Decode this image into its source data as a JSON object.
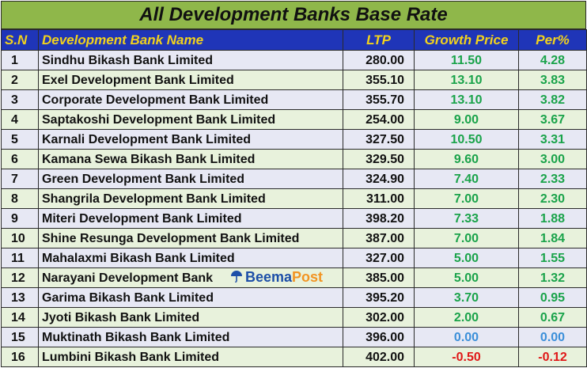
{
  "title": "All Development Banks Base Rate",
  "columns": {
    "sn": "S.N",
    "name": "Development Bank Name",
    "ltp": "LTP",
    "growth": "Growth Price",
    "per": "Per%"
  },
  "rows": [
    {
      "sn": "1",
      "name": "Sindhu Bikash Bank Limited",
      "ltp": "280.00",
      "growth": "11.50",
      "per": "4.28",
      "trend": "pos"
    },
    {
      "sn": "2",
      "name": "Exel Development Bank Limited",
      "ltp": "355.10",
      "growth": "13.10",
      "per": "3.83",
      "trend": "pos"
    },
    {
      "sn": "3",
      "name": "Corporate Development Bank Limited",
      "ltp": "355.70",
      "growth": "13.10",
      "per": "3.82",
      "trend": "pos"
    },
    {
      "sn": "4",
      "name": "Saptakoshi Development Bank Limited",
      "ltp": "254.00",
      "growth": "9.00",
      "per": "3.67",
      "trend": "pos"
    },
    {
      "sn": "5",
      "name": "Karnali Development Bank Limited",
      "ltp": "327.50",
      "growth": "10.50",
      "per": "3.31",
      "trend": "pos"
    },
    {
      "sn": "6",
      "name": "Kamana Sewa Bikash Bank Limited",
      "ltp": "329.50",
      "growth": "9.60",
      "per": "3.00",
      "trend": "pos"
    },
    {
      "sn": "7",
      "name": "Green Development Bank Limited",
      "ltp": "324.90",
      "growth": "7.40",
      "per": "2.33",
      "trend": "pos"
    },
    {
      "sn": "8",
      "name": "Shangrila Development Bank Limited",
      "ltp": "311.00",
      "growth": "7.00",
      "per": "2.30",
      "trend": "pos"
    },
    {
      "sn": "9",
      "name": "Miteri Development Bank Limited",
      "ltp": "398.20",
      "growth": "7.33",
      "per": "1.88",
      "trend": "pos"
    },
    {
      "sn": "10",
      "name": "Shine Resunga Development Bank Limited",
      "ltp": "387.00",
      "growth": "7.00",
      "per": "1.84",
      "trend": "pos"
    },
    {
      "sn": "11",
      "name": "Mahalaxmi Bikash Bank Limited",
      "ltp": "327.00",
      "growth": "5.00",
      "per": "1.55",
      "trend": "pos"
    },
    {
      "sn": "12",
      "name": "Narayani Development Bank",
      "ltp": "385.00",
      "growth": "5.00",
      "per": "1.32",
      "trend": "pos"
    },
    {
      "sn": "13",
      "name": "Garima Bikash Bank Limited",
      "ltp": "395.20",
      "growth": "3.70",
      "per": "0.95",
      "trend": "pos"
    },
    {
      "sn": "14",
      "name": "Jyoti Bikash Bank Limited",
      "ltp": "302.00",
      "growth": "2.00",
      "per": "0.67",
      "trend": "pos"
    },
    {
      "sn": "15",
      "name": "Muktinath Bikash Bank Limited",
      "ltp": "396.00",
      "growth": "0.00",
      "per": "0.00",
      "trend": "zero"
    },
    {
      "sn": "16",
      "name": "Lumbini Bikash Bank Limited",
      "ltp": "402.00",
      "growth": "-0.50",
      "per": "-0.12",
      "trend": "neg"
    }
  ],
  "watermark": {
    "part1": "Beema",
    "part2": "Post",
    "icon": "umbrella-icon"
  },
  "colors": {
    "title_bg": "#8fb74a",
    "header_bg": "#1f35b8",
    "header_text": "#f2d21c",
    "row_odd": "#e7e8f4",
    "row_even": "#e8f2dc",
    "positive": "#1aa34a",
    "zero": "#3b8fd9",
    "negative": "#e01818"
  }
}
